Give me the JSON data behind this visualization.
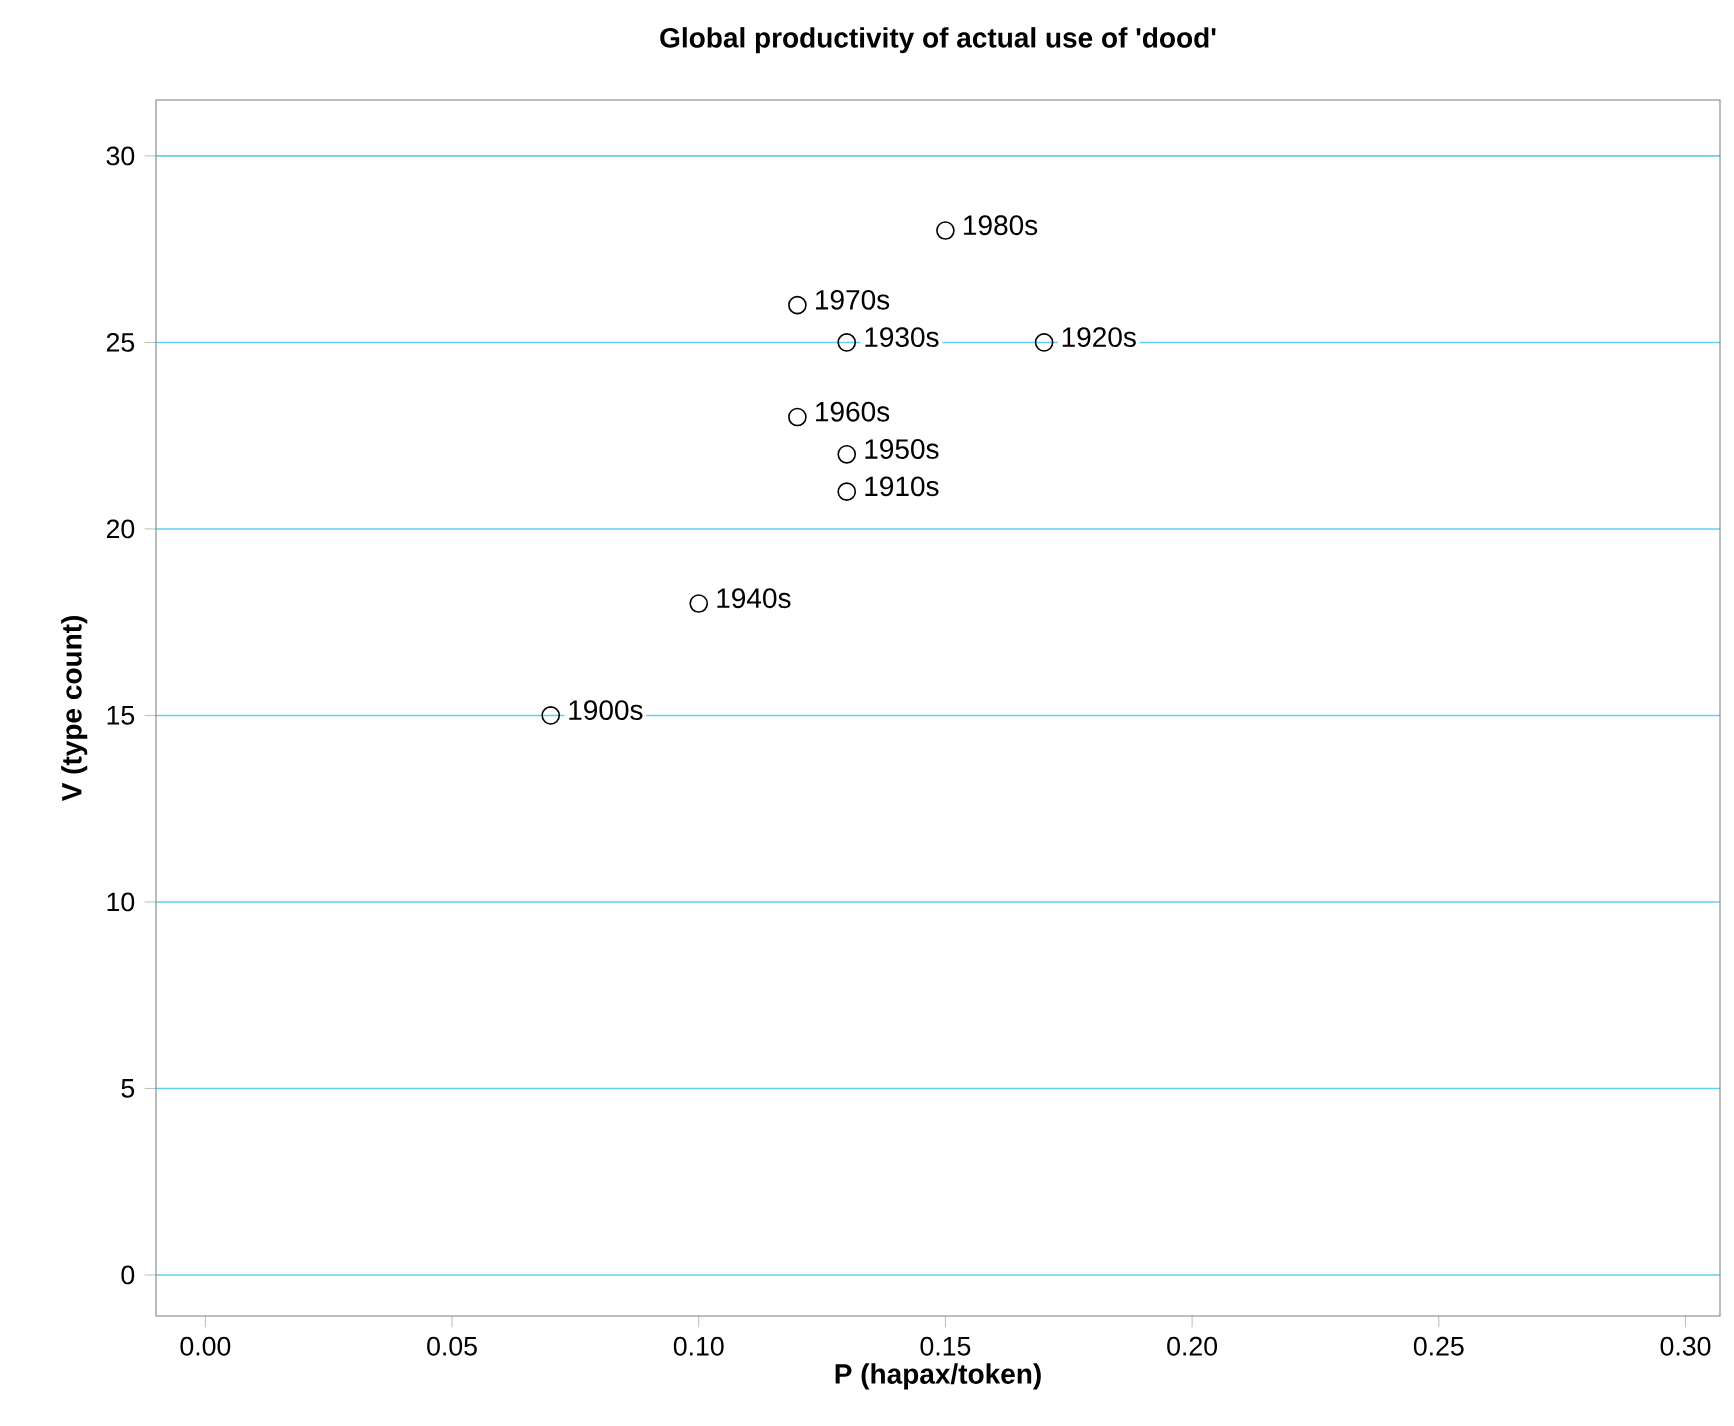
{
  "chart_data": {
    "type": "scatter",
    "title": "Global productivity of actual use of 'dood'",
    "xlabel": "P (hapax/token)",
    "ylabel": "V (type count)",
    "x": [
      0.07,
      0.13,
      0.17,
      0.13,
      0.1,
      0.13,
      0.12,
      0.12,
      0.15
    ],
    "series": [
      {
        "color": "#000000",
        "values": [
          15,
          21,
          25,
          25,
          18,
          22,
          23,
          26,
          28
        ]
      }
    ],
    "annotations": [
      {
        "text": "1900s",
        "x": 0.07,
        "y": 15
      },
      {
        "text": "1910s",
        "x": 0.13,
        "y": 21
      },
      {
        "text": "1920s",
        "x": 0.17,
        "y": 25
      },
      {
        "text": "1930s",
        "x": 0.13,
        "y": 25
      },
      {
        "text": "1940s",
        "x": 0.1,
        "y": 18
      },
      {
        "text": "1950s",
        "x": 0.13,
        "y": 22
      },
      {
        "text": "1960s",
        "x": 0.12,
        "y": 23
      },
      {
        "text": "1970s",
        "x": 0.12,
        "y": 26
      },
      {
        "text": "1980s",
        "x": 0.15,
        "y": 28
      }
    ],
    "xlim": [
      -0.01,
      0.307
    ],
    "ylim": [
      -1.1,
      31.5
    ],
    "xticks": [
      {
        "value": 0,
        "label": "0.00"
      },
      {
        "value": 0.05,
        "label": "0.05"
      },
      {
        "value": 0.1,
        "label": "0.10"
      },
      {
        "value": 0.15,
        "label": "0.15"
      },
      {
        "value": 0.2,
        "label": "0.20"
      },
      {
        "value": 0.25,
        "label": "0.25"
      },
      {
        "value": 0.3,
        "label": "0.30"
      }
    ],
    "yticks": [
      0,
      5,
      10,
      15,
      20,
      25,
      30
    ],
    "grid": "y",
    "marker": "circle"
  }
}
